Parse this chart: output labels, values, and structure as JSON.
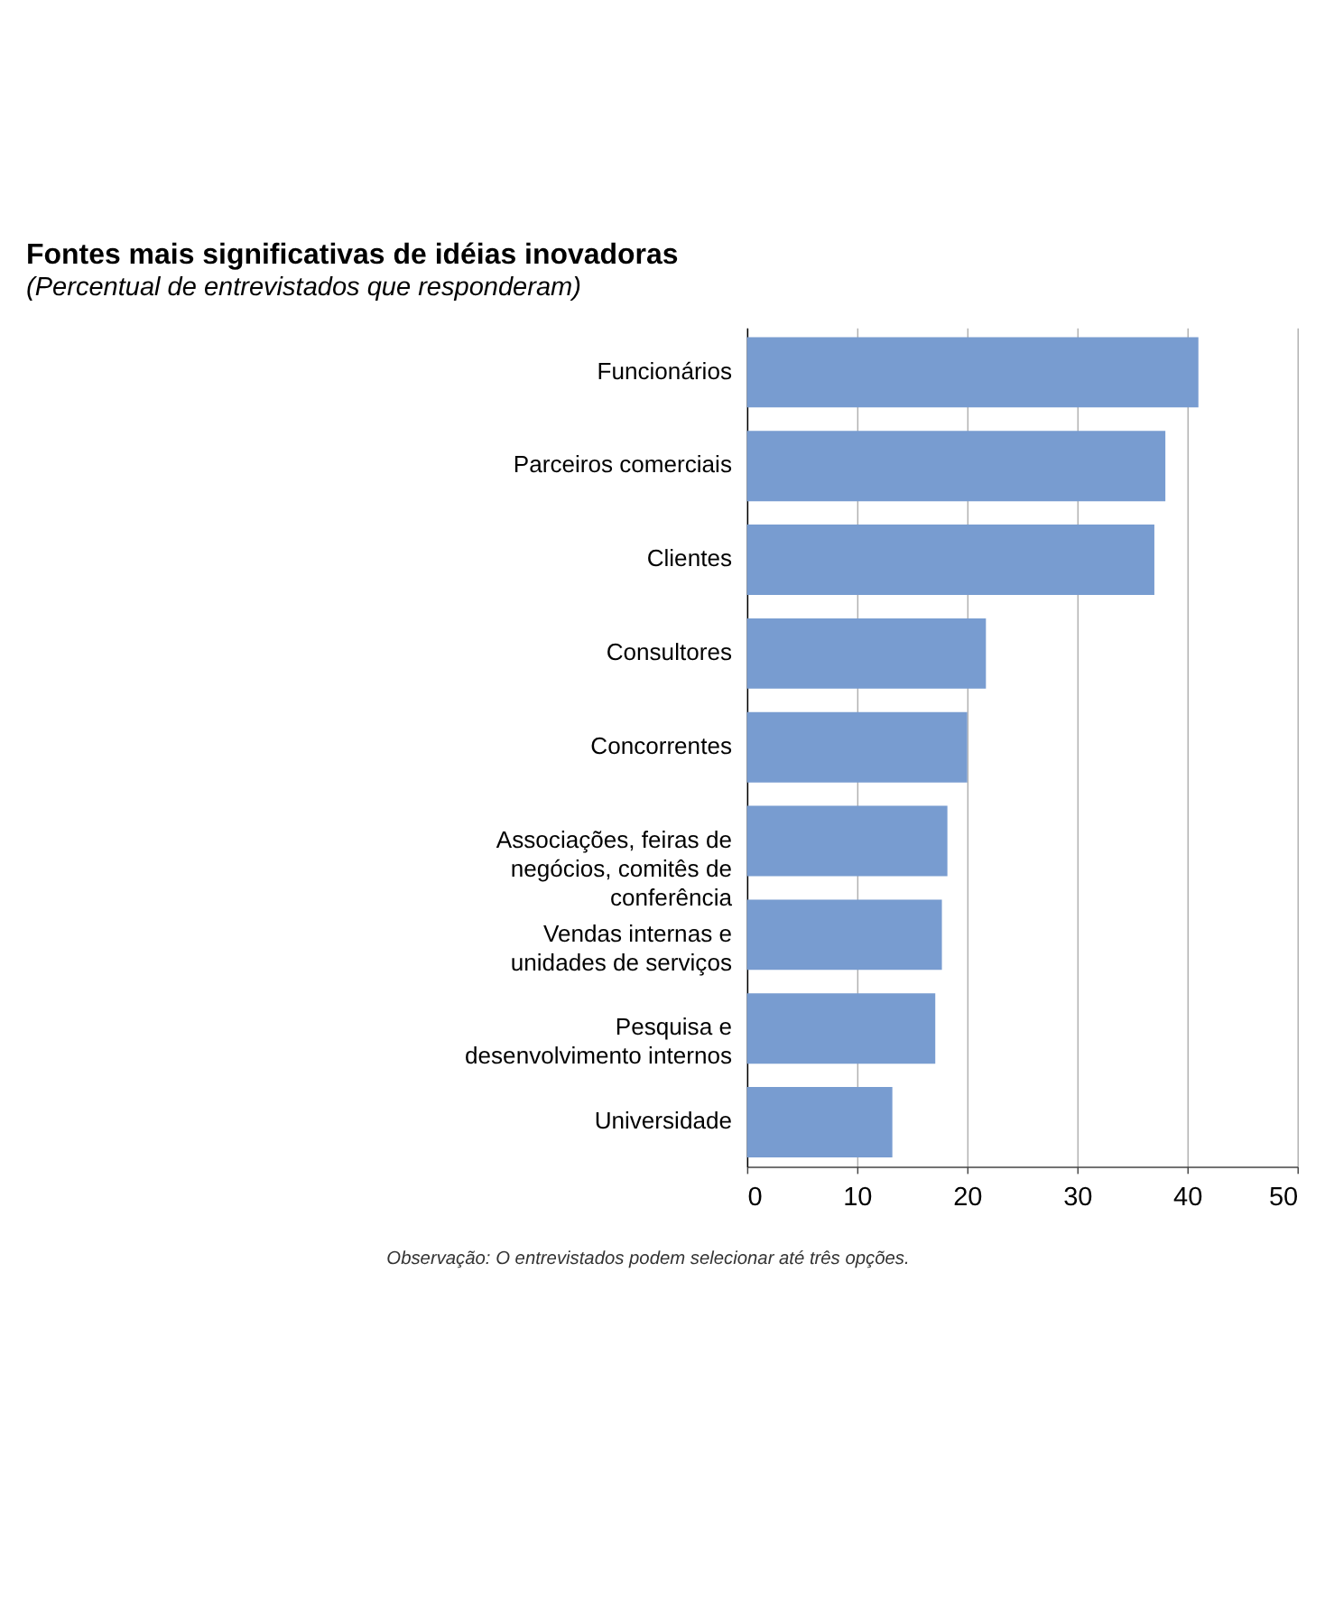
{
  "chart_data": {
    "type": "bar",
    "orientation": "horizontal",
    "title": "Fontes mais significativas de idéias inovadoras",
    "subtitle": "(Percentual de entrevistados que responderam)",
    "categories": [
      "Funcionários",
      "Parceiros comerciais",
      "Clientes",
      "Consultores",
      "Concorrentes",
      "Associações, feiras de negócios, comitês de conferência",
      "Vendas internas e unidades de serviços",
      "Pesquisa e desenvolvimento internos",
      "Universidade"
    ],
    "values": [
      41,
      38,
      37,
      21.7,
      20,
      18.2,
      17.7,
      17.1,
      13.2
    ],
    "color": "#789cd0",
    "xlim": [
      0,
      50
    ],
    "xticks": [
      0,
      10,
      20,
      30,
      40,
      50
    ],
    "grid": "x",
    "annotations": [
      "Observação: O entrevistados podem selecionar até três opções."
    ]
  }
}
